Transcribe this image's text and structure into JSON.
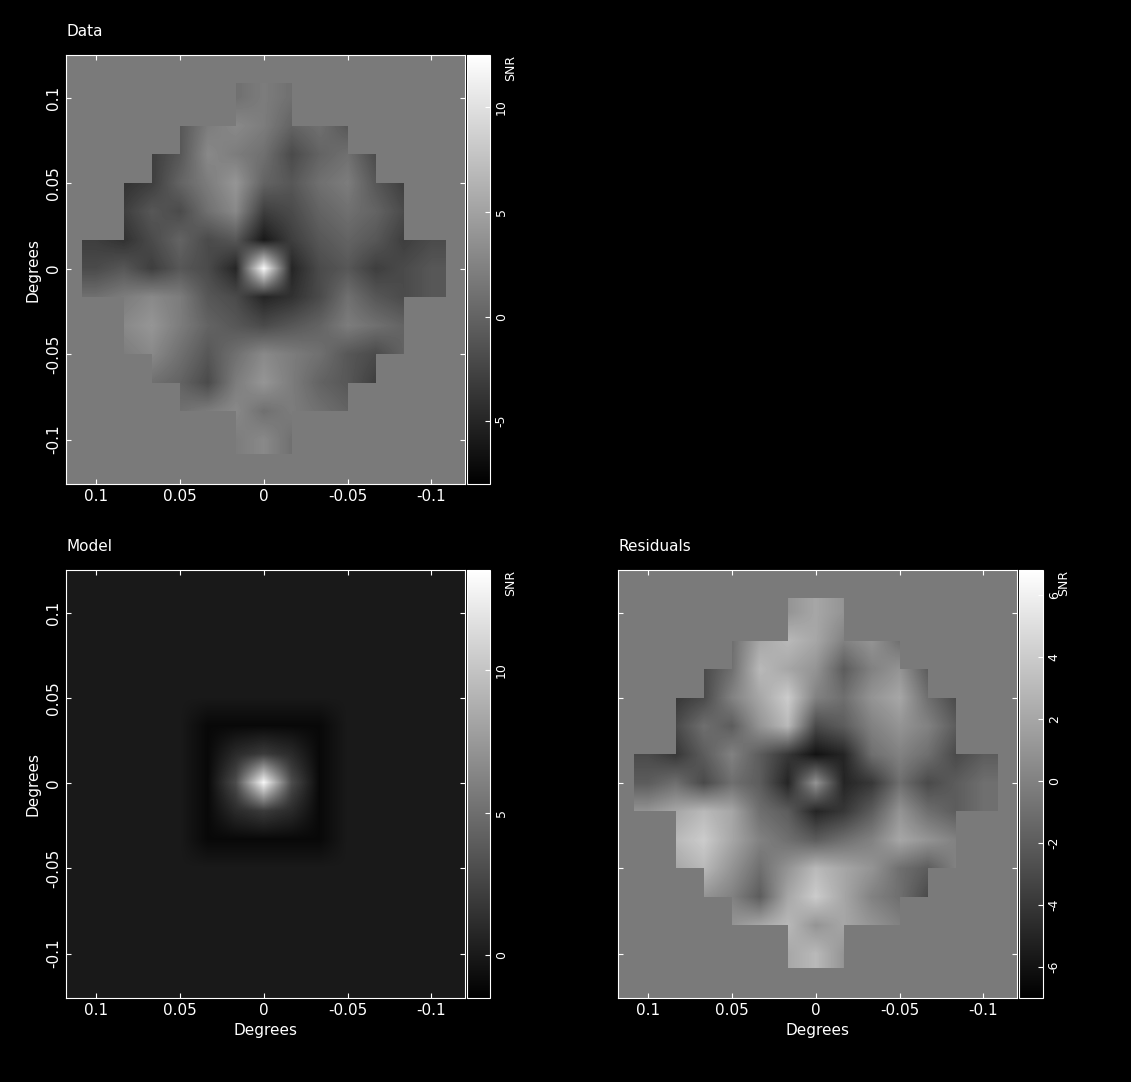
{
  "chart_data": [
    {
      "type": "heatmap",
      "title": "Data",
      "y_label": "Degrees",
      "tick_labels": true,
      "xlim": [
        0.118,
        -0.12
      ],
      "ylim": [
        -0.126,
        0.125
      ],
      "xticks": [
        0.1,
        0.05,
        0,
        -0.05,
        -0.1
      ],
      "yticks": [
        -0.1,
        -0.05,
        0,
        0.05,
        0.1
      ],
      "x": [
        0.1,
        0.0833,
        0.0667,
        0.05,
        0.0333,
        0.0167,
        0,
        -0.0167,
        -0.0333,
        -0.05,
        -0.0667,
        -0.0833,
        -0.1
      ],
      "y": [
        0.1,
        0.0833,
        0.0667,
        0.05,
        0.0333,
        0.0167,
        0,
        -0.0167,
        -0.0333,
        -0.05,
        -0.0667,
        -0.0833,
        -0.1
      ],
      "cells": [
        [
          null,
          null,
          null,
          null,
          null,
          1,
          2,
          1,
          null,
          null,
          null,
          null,
          null
        ],
        [
          null,
          null,
          null,
          -1,
          2,
          3,
          2,
          0,
          1,
          -1,
          null,
          null,
          null
        ],
        [
          null,
          null,
          -3,
          -1,
          3,
          2,
          1,
          -2,
          0,
          1,
          -2,
          null,
          null
        ],
        [
          null,
          -4,
          -3,
          0,
          2,
          4,
          0,
          -1,
          1,
          2,
          -1,
          -3,
          null
        ],
        [
          null,
          -3,
          -1,
          -2,
          1,
          3,
          -3,
          -2,
          0,
          1,
          0,
          -2,
          null
        ],
        [
          -3,
          -4,
          -2,
          0,
          -2,
          -1,
          -6,
          -3,
          -1,
          0,
          -1,
          -3,
          -2
        ],
        [
          -2,
          -1,
          -3,
          -1,
          -2,
          -5,
          12,
          -5,
          -2,
          -1,
          -3,
          -2,
          -1
        ],
        [
          1,
          2,
          3,
          2,
          -1,
          -2,
          -5,
          -4,
          -2,
          1,
          -1,
          -2,
          -1
        ],
        [
          null,
          3,
          4,
          2,
          0,
          -1,
          -2,
          -1,
          0,
          2,
          1,
          0,
          null
        ],
        [
          null,
          2,
          3,
          1,
          -1,
          1,
          3,
          2,
          1,
          -1,
          -2,
          0,
          null
        ],
        [
          null,
          null,
          1,
          0,
          -2,
          2,
          4,
          2,
          0,
          -1,
          -3,
          null,
          null
        ],
        [
          null,
          null,
          null,
          1,
          2,
          3,
          1,
          2,
          1,
          0,
          null,
          null,
          null
        ],
        [
          null,
          null,
          null,
          null,
          null,
          2,
          3,
          1,
          null,
          null,
          null,
          null,
          null
        ]
      ],
      "colorbar": {
        "label": "SNR",
        "range": [
          -8,
          12.5
        ],
        "ticks": [
          -5,
          0,
          5,
          10
        ]
      }
    },
    {
      "type": "heatmap",
      "title": "Model",
      "x_label": "Degrees",
      "y_label": "Degrees",
      "tick_labels": true,
      "xlim": [
        0.118,
        -0.12
      ],
      "ylim": [
        -0.126,
        0.125
      ],
      "xticks": [
        0.1,
        0.05,
        0,
        -0.05,
        -0.1
      ],
      "yticks": [
        -0.1,
        -0.05,
        0,
        0.05,
        0.1
      ],
      "x": [
        0.1167,
        0.1,
        0.0833,
        0.0667,
        0.05,
        0.0333,
        0.0167,
        0,
        -0.0167,
        -0.0333,
        -0.05,
        -0.0667,
        -0.0833,
        -0.1,
        -0.1167
      ],
      "y": [
        0.1167,
        0.1,
        0.0833,
        0.0667,
        0.05,
        0.0333,
        0.0167,
        0,
        -0.0167,
        -0.0333,
        -0.05,
        -0.0667,
        -0.0833,
        -0.1,
        -0.1167
      ],
      "cells": [
        [
          0,
          0,
          0,
          0,
          0,
          0,
          0,
          0,
          0,
          0,
          0,
          0,
          0,
          0,
          0
        ],
        [
          0,
          0,
          0,
          0,
          0,
          0,
          0,
          0,
          0,
          0,
          0,
          0,
          0,
          0,
          0
        ],
        [
          0,
          0,
          0,
          0,
          0,
          0,
          0,
          0,
          0,
          0,
          0,
          0,
          0,
          0,
          0
        ],
        [
          0,
          0,
          0,
          0,
          0,
          0,
          0,
          0,
          0,
          0,
          0,
          0,
          0,
          0,
          0
        ],
        [
          0,
          0,
          0,
          0,
          0,
          0,
          0,
          0,
          0,
          0,
          0,
          0,
          0,
          0,
          0
        ],
        [
          0,
          0,
          0,
          0,
          0,
          -1,
          -1,
          -1,
          -1,
          -1,
          0,
          0,
          0,
          0,
          0
        ],
        [
          0,
          0,
          0,
          0,
          0,
          -1,
          1,
          2,
          1,
          -1,
          0,
          0,
          0,
          0,
          0
        ],
        [
          0,
          0,
          0,
          0,
          0,
          -1,
          3,
          13,
          3,
          -1,
          0,
          0,
          0,
          0,
          0
        ],
        [
          0,
          0,
          0,
          0,
          0,
          -1,
          1,
          2,
          1,
          -1,
          0,
          0,
          0,
          0,
          0
        ],
        [
          0,
          0,
          0,
          0,
          0,
          -1,
          -1,
          -1,
          -1,
          -1,
          0,
          0,
          0,
          0,
          0
        ],
        [
          0,
          0,
          0,
          0,
          0,
          0,
          0,
          0,
          0,
          0,
          0,
          0,
          0,
          0,
          0
        ],
        [
          0,
          0,
          0,
          0,
          0,
          0,
          0,
          0,
          0,
          0,
          0,
          0,
          0,
          0,
          0
        ],
        [
          0,
          0,
          0,
          0,
          0,
          0,
          0,
          0,
          0,
          0,
          0,
          0,
          0,
          0,
          0
        ],
        [
          0,
          0,
          0,
          0,
          0,
          0,
          0,
          0,
          0,
          0,
          0,
          0,
          0,
          0,
          0
        ],
        [
          0,
          0,
          0,
          0,
          0,
          0,
          0,
          0,
          0,
          0,
          0,
          0,
          0,
          0,
          0
        ]
      ],
      "colorbar": {
        "label": "SNR",
        "range": [
          -1.5,
          13.5
        ],
        "ticks": [
          0,
          5,
          10
        ]
      }
    },
    {
      "type": "heatmap",
      "title": "Residuals",
      "x_label": "Degrees",
      "tick_labels": "x",
      "xlim": [
        0.118,
        -0.12
      ],
      "ylim": [
        -0.126,
        0.125
      ],
      "xticks": [
        0.1,
        0.05,
        0,
        -0.05,
        -0.1
      ],
      "yticks": [
        -0.1,
        -0.05,
        0,
        0.05,
        0.1
      ],
      "x": [
        0.1,
        0.0833,
        0.0667,
        0.05,
        0.0333,
        0.0167,
        0,
        -0.0167,
        -0.0333,
        -0.05,
        -0.0667,
        -0.0833,
        -0.1
      ],
      "y": [
        0.1,
        0.0833,
        0.0667,
        0.05,
        0.0333,
        0.0167,
        0,
        -0.0167,
        -0.0333,
        -0.05,
        -0.0667,
        -0.0833,
        -0.1
      ],
      "cells": [
        [
          null,
          null,
          null,
          null,
          null,
          1,
          2,
          1,
          null,
          null,
          null,
          null,
          null
        ],
        [
          null,
          null,
          null,
          -1,
          2,
          3,
          2,
          0,
          1,
          -1,
          null,
          null,
          null
        ],
        [
          null,
          null,
          -3,
          -1,
          3,
          2,
          1,
          -2,
          0,
          1,
          -2,
          null,
          null
        ],
        [
          null,
          -4,
          -3,
          0,
          2,
          4,
          0,
          -1,
          1,
          2,
          -1,
          -3,
          null
        ],
        [
          null,
          -3,
          -1,
          -2,
          1,
          3,
          -3,
          -2,
          0,
          1,
          0,
          -2,
          null
        ],
        [
          -3,
          -4,
          -2,
          0,
          -2,
          -4,
          -6,
          -5,
          -1,
          0,
          -1,
          -3,
          -2
        ],
        [
          -2,
          -1,
          -3,
          -1,
          -2,
          -5,
          1,
          -5,
          -4,
          -1,
          -3,
          -2,
          -1
        ],
        [
          1,
          2,
          3,
          2,
          -1,
          -2,
          -5,
          -4,
          -2,
          1,
          -1,
          -2,
          -1
        ],
        [
          null,
          3,
          4,
          2,
          0,
          -1,
          -2,
          -1,
          0,
          2,
          1,
          0,
          null
        ],
        [
          null,
          2,
          3,
          1,
          -1,
          1,
          3,
          2,
          1,
          -1,
          -2,
          0,
          null
        ],
        [
          null,
          null,
          1,
          0,
          -2,
          2,
          4,
          2,
          0,
          -1,
          -3,
          null,
          null
        ],
        [
          null,
          null,
          null,
          1,
          2,
          3,
          1,
          2,
          1,
          0,
          null,
          null,
          null
        ],
        [
          null,
          null,
          null,
          null,
          null,
          2,
          3,
          1,
          null,
          null,
          null,
          null,
          null
        ]
      ],
      "colorbar": {
        "label": "SNR",
        "range": [
          -7,
          6.8
        ],
        "ticks": [
          -6,
          -4,
          -2,
          0,
          2,
          4,
          6
        ]
      }
    }
  ]
}
